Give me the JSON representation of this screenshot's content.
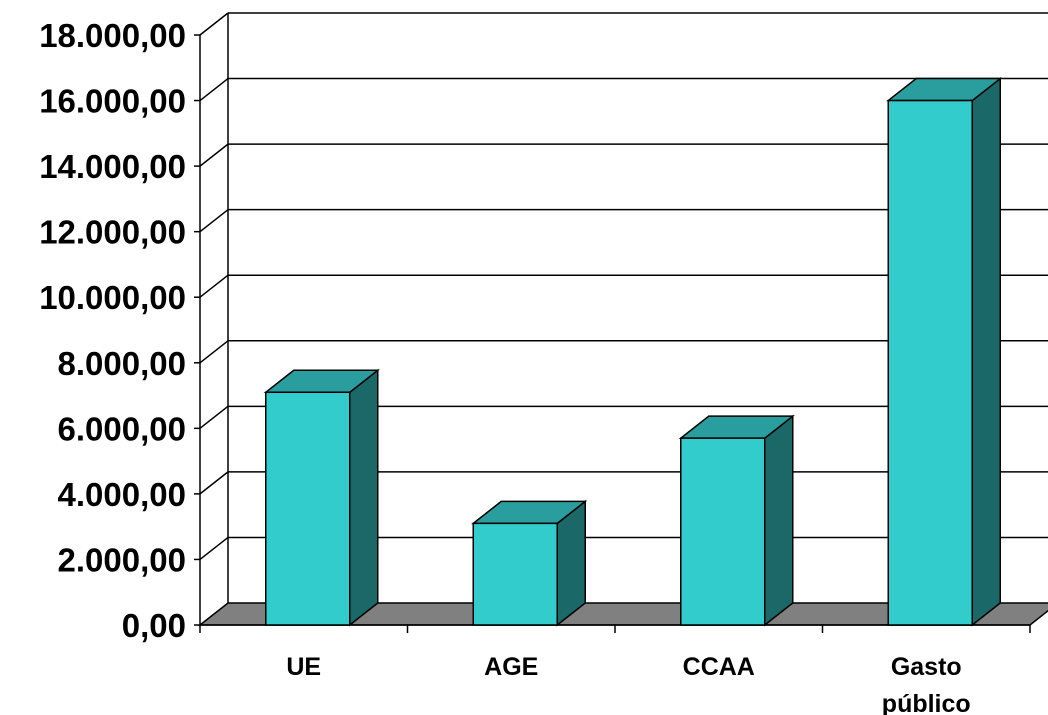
{
  "chart_data": {
    "type": "bar",
    "categories": [
      "UE",
      "AGE",
      "CCAA",
      "Gasto público"
    ],
    "values": [
      7100,
      3100,
      5700,
      16000
    ],
    "ylim": [
      0,
      18000
    ],
    "yticks": [
      0,
      2000,
      4000,
      6000,
      8000,
      10000,
      12000,
      14000,
      16000,
      18000
    ],
    "ytick_labels": [
      "0,00",
      "2.000,00",
      "4.000,00",
      "6.000,00",
      "8.000,00",
      "10.000,00",
      "12.000,00",
      "14.000,00",
      "16.000,00",
      "18.000,00"
    ],
    "title": "",
    "xlabel": "",
    "ylabel": "",
    "grid": true,
    "style": "3d-column",
    "colors": {
      "bar_front": "#33CCCC",
      "bar_top": "#2A9E9E",
      "bar_side": "#1B6868",
      "floor": "#808080",
      "grid": "#000000"
    }
  }
}
